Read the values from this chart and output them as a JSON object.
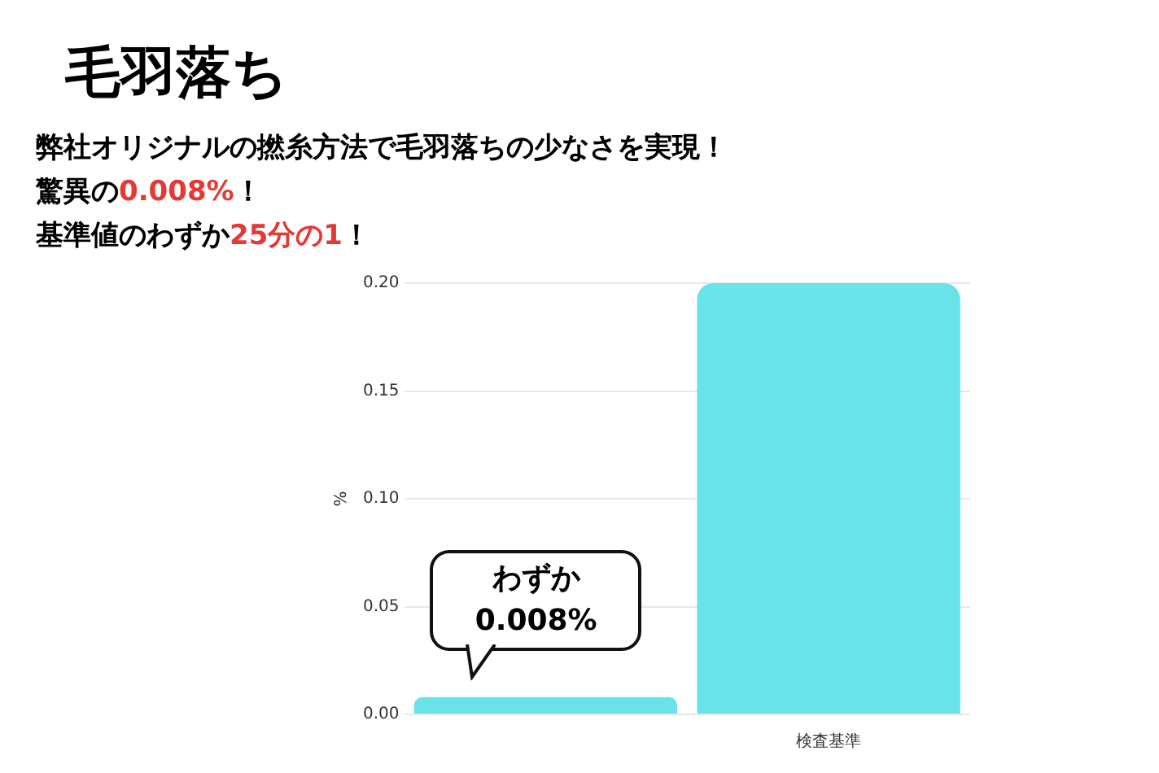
{
  "chart_data": {
    "type": "bar",
    "title": "毛羽落ち",
    "subtitle": "弊社オリジナルの撚糸方法で毛羽落ちの少なさを実現！",
    "categories": [
      null,
      "検査基準"
    ],
    "values": [
      0.008,
      0.2
    ],
    "color": "#6ae3e8",
    "ylabel": "%",
    "ylim": [
      0,
      0.2
    ],
    "yticks": [
      {
        "value": 0,
        "label": "0.00"
      },
      {
        "value": 0.05,
        "label": "0.05"
      },
      {
        "value": 0.1,
        "label": "0.10"
      },
      {
        "value": 0.15,
        "label": "0.15"
      },
      {
        "value": 0.2,
        "label": "0.20"
      }
    ],
    "grid": "y",
    "annotations": [
      "驚異の0.008%！",
      "基準値のわずか25分の1！",
      {
        "text": "わずか\n0.008%",
        "y": 0.008
      }
    ]
  }
}
